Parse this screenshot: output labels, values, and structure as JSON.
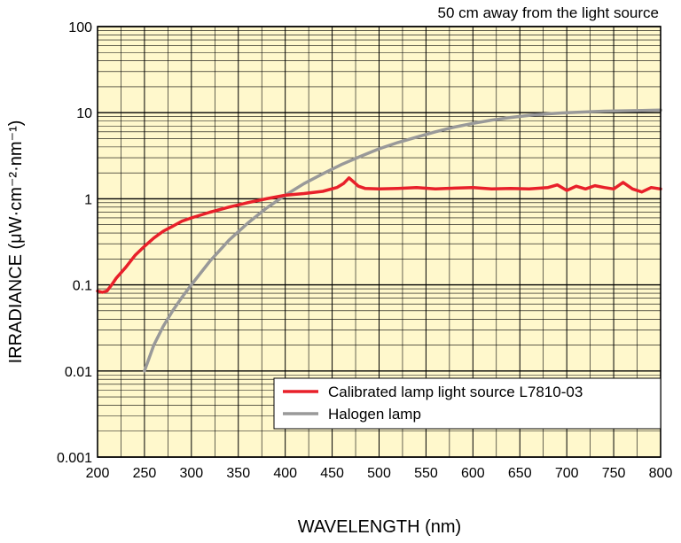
{
  "chart_data": {
    "type": "line",
    "title": "",
    "annotation": "50 cm away from the light source",
    "xlabel": "WAVELENGTH (nm)",
    "ylabel": "IRRADIANCE (μW·cm⁻²·nm⁻¹)",
    "xlim": [
      200,
      800
    ],
    "ylim": [
      0.001,
      100
    ],
    "yscale": "log",
    "grid": true,
    "legend_position": "bottom-right",
    "background_color": "#FFF8CC",
    "x_ticks": [
      200,
      250,
      300,
      350,
      400,
      450,
      500,
      550,
      600,
      650,
      700,
      750,
      800
    ],
    "x_tick_labels": [
      "200",
      "250",
      "300",
      "350",
      "400",
      "450",
      "500",
      "550",
      "600",
      "650",
      "700",
      "750",
      "800"
    ],
    "y_ticks": [
      0.001,
      0.01,
      0.1,
      1,
      10,
      100
    ],
    "y_tick_labels": [
      "0.001",
      "0.01",
      "0.1",
      "1",
      "10",
      "100"
    ],
    "series": [
      {
        "name": "Calibrated lamp light source L7810-03",
        "color": "#E8202A",
        "x": [
          200,
          205,
          210,
          215,
          220,
          230,
          240,
          250,
          260,
          270,
          280,
          290,
          300,
          320,
          340,
          360,
          380,
          400,
          420,
          440,
          455,
          462,
          468,
          472,
          478,
          485,
          500,
          520,
          540,
          560,
          580,
          600,
          620,
          640,
          660,
          680,
          690,
          700,
          710,
          720,
          730,
          740,
          750,
          760,
          770,
          780,
          790,
          800
        ],
        "y": [
          0.085,
          0.082,
          0.085,
          0.1,
          0.12,
          0.16,
          0.22,
          0.28,
          0.35,
          0.42,
          0.48,
          0.55,
          0.6,
          0.7,
          0.8,
          0.9,
          1.0,
          1.1,
          1.15,
          1.22,
          1.35,
          1.5,
          1.75,
          1.6,
          1.4,
          1.32,
          1.3,
          1.32,
          1.35,
          1.3,
          1.33,
          1.35,
          1.3,
          1.32,
          1.3,
          1.35,
          1.45,
          1.25,
          1.4,
          1.3,
          1.42,
          1.35,
          1.3,
          1.55,
          1.3,
          1.2,
          1.35,
          1.3
        ]
      },
      {
        "name": "Halogen lamp",
        "color": "#999999",
        "x": [
          250,
          260,
          270,
          280,
          290,
          300,
          320,
          340,
          360,
          380,
          400,
          420,
          440,
          460,
          480,
          500,
          520,
          540,
          560,
          580,
          600,
          620,
          640,
          660,
          680,
          700,
          720,
          740,
          760,
          780,
          800
        ],
        "y": [
          0.01,
          0.02,
          0.033,
          0.05,
          0.072,
          0.1,
          0.19,
          0.33,
          0.52,
          0.78,
          1.1,
          1.5,
          1.95,
          2.5,
          3.1,
          3.8,
          4.5,
          5.2,
          6.0,
          6.8,
          7.5,
          8.2,
          8.8,
          9.3,
          9.7,
          10.0,
          10.2,
          10.4,
          10.5,
          10.6,
          10.7
        ]
      }
    ]
  }
}
